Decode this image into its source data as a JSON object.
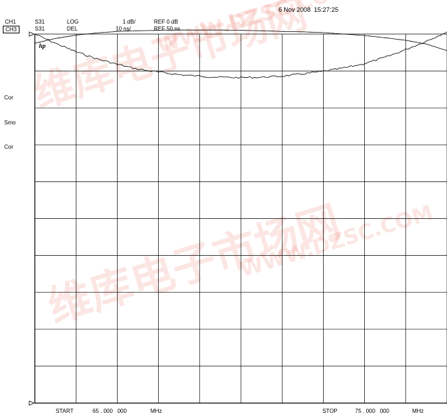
{
  "header": {
    "datetime": "6 Nov 2008  15:27:25",
    "ch1": {
      "channel": "CH1",
      "param": "S31",
      "format": "LOG",
      "scale": "1 dB/",
      "ref": "REF 0 dB"
    },
    "ch3": {
      "channel": "CH3",
      "param": "S31",
      "format": "DEL",
      "scale": "10 ns/",
      "ref": "REF 50 ns"
    }
  },
  "side_labels": [
    "Cor",
    "Smo",
    "Cor"
  ],
  "logo": "hp",
  "footer": {
    "start_label": "START",
    "start_value": "65 . 000   000",
    "start_unit": "MHz",
    "stop_label": "STOP",
    "stop_value": "75 . 000   000",
    "stop_unit": "MHz"
  },
  "watermark": {
    "brand": "维库电子市场网",
    "url": "WWW.DZSC.COM"
  },
  "chart_data": {
    "type": "line",
    "grid": true,
    "xlim": [
      65,
      75
    ],
    "x_unit": "MHz",
    "grid_divisions": {
      "x": 10,
      "y": 10
    },
    "series": [
      {
        "name": "CH1 S31 LOG",
        "ref_value": 0,
        "scale_per_div": 1,
        "unit": "dB",
        "x": [
          65,
          65.5,
          66,
          66.5,
          67,
          67.5,
          68,
          68.5,
          69,
          69.5,
          70,
          70.5,
          71,
          71.5,
          72,
          72.5,
          73,
          73.5,
          74,
          74.5,
          75
        ],
        "values": [
          -0.25,
          -0.12,
          -0.03,
          0.03,
          0.07,
          0.09,
          0.1,
          0.11,
          0.11,
          0.11,
          0.1,
          0.09,
          0.07,
          0.06,
          0.04,
          0.0,
          -0.04,
          -0.1,
          -0.17,
          -0.27,
          -0.45
        ]
      },
      {
        "name": "CH3 S31 DEL",
        "ref_value": 50,
        "scale_per_div": 10,
        "unit": "ns",
        "x": [
          65,
          65.5,
          66,
          66.5,
          67,
          67.5,
          68,
          68.5,
          69,
          69.5,
          70,
          70.5,
          71,
          71.5,
          72,
          72.5,
          73,
          73.5,
          74,
          74.5,
          75
        ],
        "values": [
          50,
          47.5,
          45.2,
          43.3,
          41.8,
          40.5,
          39.7,
          39.0,
          38.6,
          38.3,
          38.2,
          38.3,
          38.6,
          39.2,
          39.9,
          40.8,
          42.0,
          43.7,
          45.8,
          48.1,
          50.6
        ]
      }
    ]
  }
}
